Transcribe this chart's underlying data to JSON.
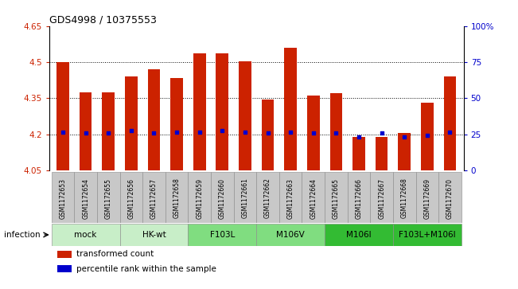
{
  "title": "GDS4998 / 10375553",
  "samples": [
    "GSM1172653",
    "GSM1172654",
    "GSM1172655",
    "GSM1172656",
    "GSM1172657",
    "GSM1172658",
    "GSM1172659",
    "GSM1172660",
    "GSM1172661",
    "GSM1172662",
    "GSM1172663",
    "GSM1172664",
    "GSM1172665",
    "GSM1172666",
    "GSM1172667",
    "GSM1172668",
    "GSM1172669",
    "GSM1172670"
  ],
  "bar_values": [
    4.5,
    4.375,
    4.375,
    4.44,
    4.47,
    4.435,
    4.535,
    4.535,
    4.505,
    4.345,
    4.56,
    4.36,
    4.37,
    4.19,
    4.19,
    4.205,
    4.33,
    4.44
  ],
  "blue_dot_values": [
    4.21,
    4.205,
    4.205,
    4.215,
    4.205,
    4.21,
    4.21,
    4.215,
    4.21,
    4.205,
    4.21,
    4.205,
    4.205,
    4.19,
    4.205,
    4.19,
    4.195,
    4.21
  ],
  "groups": [
    {
      "label": "mock",
      "start": 0,
      "end": 3,
      "color": "#c8eec8"
    },
    {
      "label": "HK-wt",
      "start": 3,
      "end": 6,
      "color": "#c8eec8"
    },
    {
      "label": "F103L",
      "start": 6,
      "end": 9,
      "color": "#80dd80"
    },
    {
      "label": "M106V",
      "start": 9,
      "end": 12,
      "color": "#80dd80"
    },
    {
      "label": "M106I",
      "start": 12,
      "end": 15,
      "color": "#33bb33"
    },
    {
      "label": "F103L+M106I",
      "start": 15,
      "end": 18,
      "color": "#33bb33"
    }
  ],
  "infection_label": "infection",
  "ylim": [
    4.05,
    4.65
  ],
  "yticks": [
    4.05,
    4.2,
    4.35,
    4.5,
    4.65
  ],
  "ytick_labels": [
    "4.05",
    "4.2",
    "4.35",
    "4.5",
    "4.65"
  ],
  "right_yticks": [
    0,
    25,
    50,
    75,
    100
  ],
  "right_ytick_labels": [
    "0",
    "25",
    "50",
    "75",
    "100%"
  ],
  "dotted_lines": [
    4.2,
    4.35,
    4.5
  ],
  "bar_color": "#cc2200",
  "dot_color": "#0000cc",
  "sample_box_color": "#c8c8c8",
  "bar_width": 0.55,
  "legend_items": [
    {
      "color": "#cc2200",
      "label": "transformed count"
    },
    {
      "color": "#0000cc",
      "label": "percentile rank within the sample"
    }
  ]
}
